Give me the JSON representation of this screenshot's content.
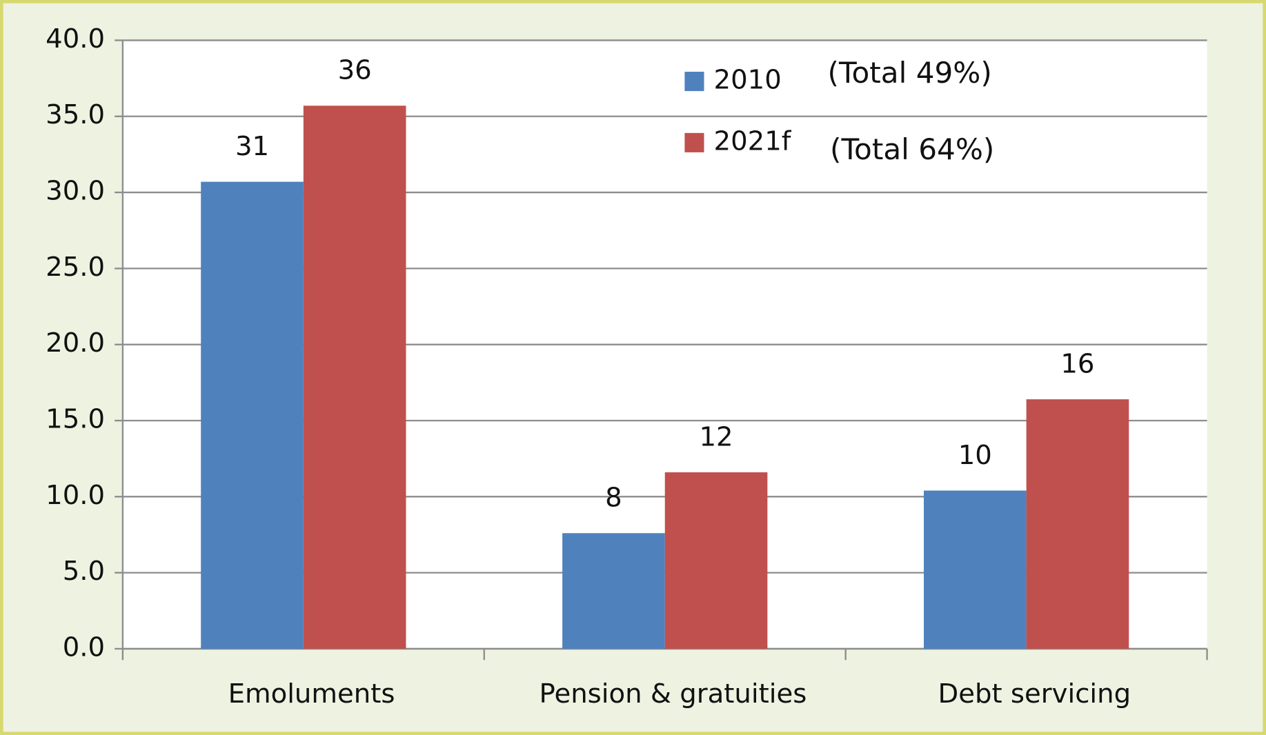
{
  "chart_data": {
    "type": "bar",
    "categories": [
      "Emoluments",
      "Pension & gratuities",
      "Debt servicing"
    ],
    "series": [
      {
        "name": "2010",
        "color": "#4f81bd",
        "values": [
          30.7,
          7.6,
          10.4
        ],
        "value_labels": [
          "31",
          "8",
          "10"
        ]
      },
      {
        "name": "2021f",
        "color": "#c0504d",
        "values": [
          35.7,
          11.6,
          16.4
        ],
        "value_labels": [
          "36",
          "12",
          "16"
        ]
      }
    ],
    "annotations": [
      "(Total 49%)",
      "(Total 64%)"
    ],
    "ylim": [
      0,
      40
    ],
    "yticks": [
      {
        "value": 0,
        "label": "0.0"
      },
      {
        "value": 5,
        "label": "5.0"
      },
      {
        "value": 10,
        "label": "10.0"
      },
      {
        "value": 15,
        "label": "15.0"
      },
      {
        "value": 20,
        "label": "20.0"
      },
      {
        "value": 25,
        "label": "25.0"
      },
      {
        "value": 30,
        "label": "30.0"
      },
      {
        "value": 35,
        "label": "35.0"
      },
      {
        "value": 40,
        "label": "40.0"
      }
    ],
    "grid": true
  }
}
